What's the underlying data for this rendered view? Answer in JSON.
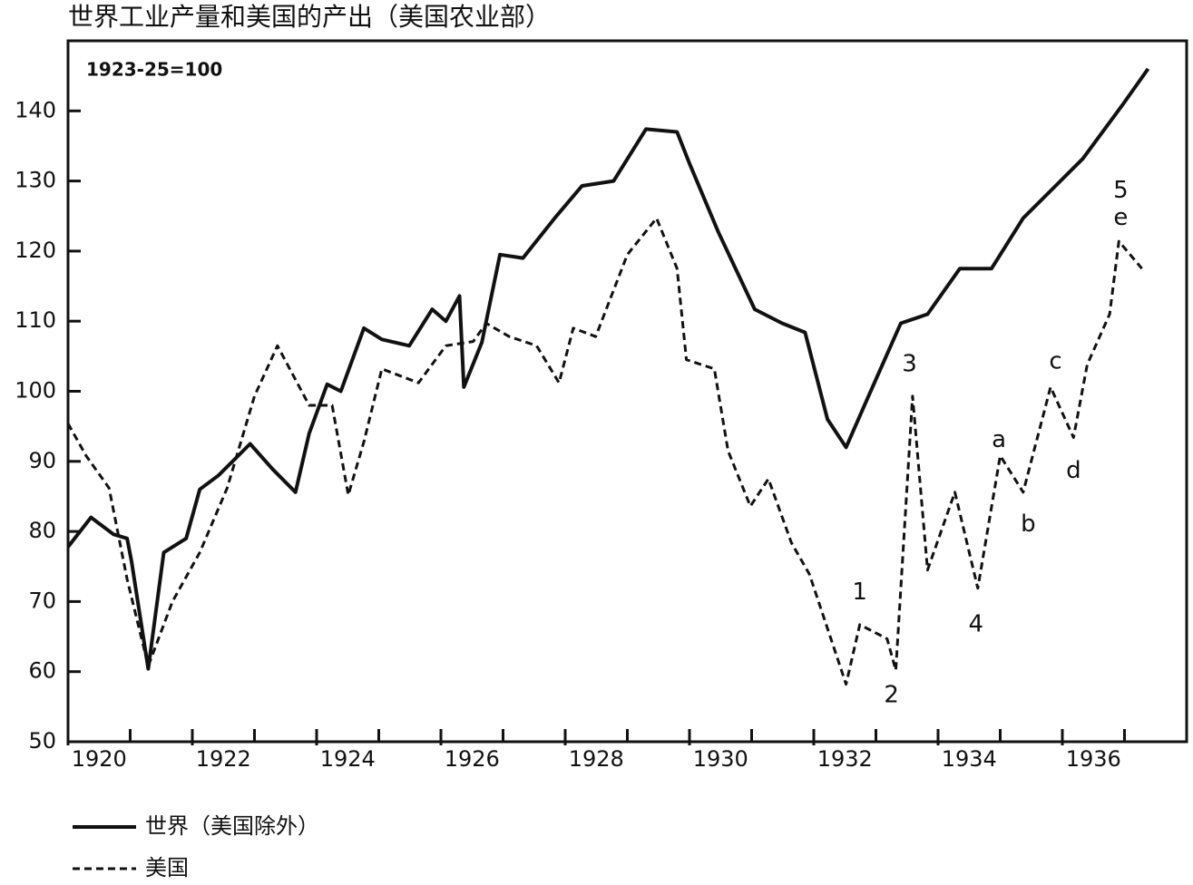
{
  "chart_data": {
    "type": "line",
    "title": "世界工业产量和美国的产出（美国农业部）",
    "note": "1923-25=100",
    "xlim": [
      1920,
      1938
    ],
    "xticks": [
      1920,
      1922,
      1924,
      1926,
      1928,
      1930,
      1932,
      1934,
      1936
    ],
    "ylim": [
      50,
      150
    ],
    "yticks": [
      50,
      60,
      70,
      80,
      90,
      100,
      110,
      120,
      130,
      140
    ],
    "series": [
      {
        "name": "世界（美国除外）",
        "color": "#111111",
        "style": "solid",
        "x": [
          1920.0,
          1920.37,
          1920.73,
          1920.95,
          1921.02,
          1921.29,
          1921.54,
          1921.9,
          1922.12,
          1922.42,
          1922.93,
          1923.29,
          1923.66,
          1923.88,
          1924.17,
          1924.39,
          1924.76,
          1925.05,
          1925.49,
          1925.86,
          1926.08,
          1926.3,
          1926.37,
          1926.66,
          1926.95,
          1927.32,
          1927.83,
          1928.27,
          1928.78,
          1929.3,
          1929.8,
          1930.0,
          1930.46,
          1931.05,
          1931.49,
          1931.86,
          1932.22,
          1932.52,
          1932.88,
          1933.4,
          1933.83,
          1934.35,
          1934.86,
          1935.37,
          1935.89,
          1936.33,
          1936.98,
          1937.38
        ],
        "values": [
          77.8,
          82,
          79.6,
          79,
          75.8,
          60.4,
          77,
          79,
          86,
          88,
          92.5,
          88.9,
          85.6,
          94,
          101,
          100,
          109,
          107.4,
          106.5,
          111.7,
          110,
          113.6,
          100.6,
          107,
          119.5,
          119,
          124.7,
          129.3,
          130,
          137.4,
          137,
          132.5,
          122.8,
          111.7,
          109.7,
          108.4,
          96,
          92,
          99.3,
          109.7,
          111,
          117.5,
          117.5,
          124.7,
          129.3,
          133.2,
          141,
          146
        ]
      },
      {
        "name": "美国",
        "color": "#111111",
        "style": "dashed",
        "x": [
          1920.0,
          1920.29,
          1920.66,
          1920.95,
          1921.29,
          1921.68,
          1922.12,
          1922.56,
          1923.0,
          1923.37,
          1923.88,
          1924.25,
          1924.51,
          1924.76,
          1925.05,
          1925.64,
          1926.08,
          1926.52,
          1926.73,
          1927.1,
          1927.54,
          1927.9,
          1928.13,
          1928.49,
          1929.0,
          1929.47,
          1929.8,
          1929.95,
          1930.4,
          1930.62,
          1930.98,
          1931.27,
          1931.64,
          1931.93,
          1932.52,
          1932.74,
          1933.18,
          1933.32,
          1933.59,
          1933.83,
          1934.27,
          1934.64,
          1935.0,
          1935.37,
          1935.81,
          1936.18,
          1936.4,
          1936.76,
          1936.91,
          1937.28
        ],
        "values": [
          95.4,
          90.8,
          86.2,
          73.2,
          60.8,
          70,
          77,
          86.2,
          99.3,
          106.5,
          98,
          98,
          85.2,
          92.8,
          103.2,
          101.2,
          106.5,
          107.1,
          109.7,
          107.8,
          106.5,
          101.2,
          109,
          107.8,
          119.5,
          124.7,
          117.5,
          104.5,
          103.2,
          91.5,
          83.6,
          87.5,
          78.4,
          73.9,
          58.2,
          66.7,
          64.7,
          60.2,
          99.3,
          74.5,
          85.6,
          71.9,
          90.8,
          85.6,
          100.6,
          93.4,
          103.8,
          111,
          121.4,
          117.5
        ]
      }
    ],
    "annotations": [
      {
        "text": "1",
        "x": 1932.74,
        "y": 71.3
      },
      {
        "text": "2",
        "x": 1933.25,
        "y": 56.6
      },
      {
        "text": "3",
        "x": 1933.54,
        "y": 103.8
      },
      {
        "text": "4",
        "x": 1934.61,
        "y": 66.7
      },
      {
        "text": "5",
        "x": 1936.94,
        "y": 128.6
      },
      {
        "text": "a",
        "x": 1934.98,
        "y": 93
      },
      {
        "text": "b",
        "x": 1935.45,
        "y": 81
      },
      {
        "text": "c",
        "x": 1935.89,
        "y": 104.2
      },
      {
        "text": "d",
        "x": 1936.18,
        "y": 88.6
      },
      {
        "text": "e",
        "x": 1936.94,
        "y": 124.7
      }
    ]
  }
}
